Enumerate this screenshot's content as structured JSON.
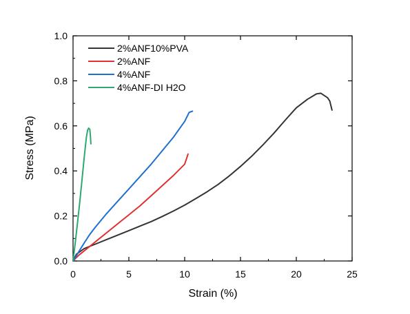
{
  "chart_data": {
    "type": "line",
    "xlabel": "Strain (%)",
    "ylabel": "Stress (MPa)",
    "xlim": [
      0,
      25
    ],
    "ylim": [
      0.0,
      1.0
    ],
    "xticks": [
      0,
      5,
      10,
      15,
      20,
      25
    ],
    "yticks": [
      0.0,
      0.2,
      0.4,
      0.6,
      0.8,
      1.0
    ],
    "xtick_labels": [
      "0",
      "5",
      "10",
      "15",
      "20",
      "25"
    ],
    "ytick_labels": [
      "0.0",
      "0.2",
      "0.4",
      "0.6",
      "0.8",
      "1.0"
    ],
    "grid": false,
    "legend_position": "top-left",
    "series": [
      {
        "name": "2%ANF10%PVA",
        "color": "#333333",
        "x": [
          0,
          0.3,
          1,
          2,
          3,
          4,
          5,
          6,
          7,
          8,
          9,
          10,
          11,
          12,
          13,
          14,
          15,
          16,
          17,
          18,
          19,
          20,
          21,
          21.8,
          22.2,
          22.5,
          22.8,
          23.0,
          23.1,
          23.2
        ],
        "y": [
          0.0,
          0.03,
          0.055,
          0.075,
          0.095,
          0.115,
          0.135,
          0.155,
          0.175,
          0.198,
          0.222,
          0.248,
          0.277,
          0.307,
          0.34,
          0.378,
          0.42,
          0.465,
          0.515,
          0.568,
          0.625,
          0.68,
          0.718,
          0.742,
          0.745,
          0.735,
          0.725,
          0.71,
          0.69,
          0.67
        ]
      },
      {
        "name": "2%ANF",
        "color": "#e03030",
        "x": [
          0,
          0.2,
          0.5,
          1,
          2,
          3,
          4,
          5,
          6,
          7,
          8,
          9,
          10,
          10.3
        ],
        "y": [
          0.0,
          0.01,
          0.025,
          0.045,
          0.085,
          0.125,
          0.165,
          0.205,
          0.245,
          0.29,
          0.335,
          0.38,
          0.43,
          0.475
        ]
      },
      {
        "name": "4%ANF",
        "color": "#1f6fd0",
        "x": [
          0,
          0.2,
          0.5,
          1,
          1.5,
          2,
          3,
          4,
          5,
          6,
          7,
          8,
          9,
          10,
          10.4,
          10.7
        ],
        "y": [
          0.0,
          0.015,
          0.04,
          0.08,
          0.118,
          0.15,
          0.21,
          0.265,
          0.32,
          0.375,
          0.43,
          0.49,
          0.55,
          0.62,
          0.66,
          0.665
        ]
      },
      {
        "name": "4%ANF-DI H2O",
        "color": "#2aaa6e",
        "x": [
          0,
          0.2,
          0.4,
          0.6,
          0.8,
          1.0,
          1.2,
          1.3,
          1.4,
          1.5,
          1.55,
          1.6
        ],
        "y": [
          0.0,
          0.08,
          0.17,
          0.26,
          0.36,
          0.46,
          0.55,
          0.58,
          0.59,
          0.585,
          0.56,
          0.52
        ]
      }
    ]
  }
}
